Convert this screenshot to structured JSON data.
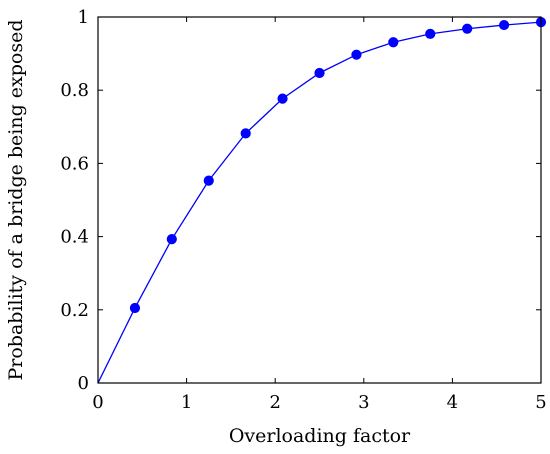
{
  "chart_data": {
    "type": "line",
    "xlabel": "Overloading factor",
    "ylabel": "Probability of a bridge being exposed",
    "xlim": [
      0,
      5
    ],
    "ylim": [
      0,
      1
    ],
    "x_ticks": [
      "0",
      "1",
      "2",
      "3",
      "4",
      "5"
    ],
    "y_ticks": [
      "0",
      "0.2",
      "0.4",
      "0.6",
      "0.8",
      "1"
    ],
    "grid": false,
    "series": [
      {
        "color": "#0000ff",
        "marker": "circle",
        "x": [
          0,
          0.417,
          0.833,
          1.25,
          1.667,
          2.083,
          2.5,
          2.917,
          3.333,
          3.75,
          4.167,
          4.583,
          5.0
        ],
        "y": [
          0,
          0.205,
          0.393,
          0.553,
          0.682,
          0.777,
          0.847,
          0.897,
          0.931,
          0.954,
          0.968,
          0.978,
          0.986
        ]
      }
    ]
  }
}
